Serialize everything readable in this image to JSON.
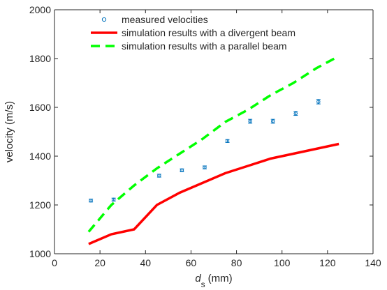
{
  "chart_data": {
    "type": "line",
    "xlabel": "d",
    "xlabel_subscript": "s",
    "xlabel_unit": "(mm)",
    "ylabel": "velocity (m/s)",
    "xlim": [
      0,
      140
    ],
    "ylim": [
      1000,
      2000
    ],
    "xticks": [
      "0",
      "20",
      "40",
      "60",
      "80",
      "100",
      "120",
      "140"
    ],
    "yticks": [
      "1000",
      "1200",
      "1400",
      "1600",
      "1800",
      "2000"
    ],
    "grid": false,
    "legend_position": "top-left",
    "series": [
      {
        "name": "measured velocities",
        "kind": "errorbar",
        "color": "#0072BD",
        "x": [
          16,
          26,
          46,
          56,
          66,
          76,
          86,
          96,
          106,
          116
        ],
        "y": [
          1218,
          1222,
          1320,
          1342,
          1354,
          1462,
          1543,
          1543,
          1575,
          1623
        ],
        "err": [
          6,
          6,
          6,
          6,
          6,
          6,
          8,
          8,
          8,
          9
        ]
      },
      {
        "name": "simulation results with a divergent beam",
        "kind": "line",
        "color": "#FF0000",
        "dash": "solid",
        "x": [
          15,
          25,
          35,
          45,
          55,
          65,
          75,
          85,
          95,
          105,
          115,
          125
        ],
        "y": [
          1040,
          1080,
          1100,
          1200,
          1250,
          1290,
          1330,
          1360,
          1390,
          1410,
          1430,
          1450
        ]
      },
      {
        "name": "simulation results with a parallel beam",
        "kind": "line",
        "color": "#00FF00",
        "dash": "dashed",
        "x": [
          15,
          25,
          35,
          45,
          55,
          65,
          75,
          85,
          95,
          105,
          115,
          125
        ],
        "y": [
          1090,
          1200,
          1280,
          1350,
          1410,
          1470,
          1540,
          1590,
          1650,
          1700,
          1760,
          1810
        ]
      }
    ]
  }
}
